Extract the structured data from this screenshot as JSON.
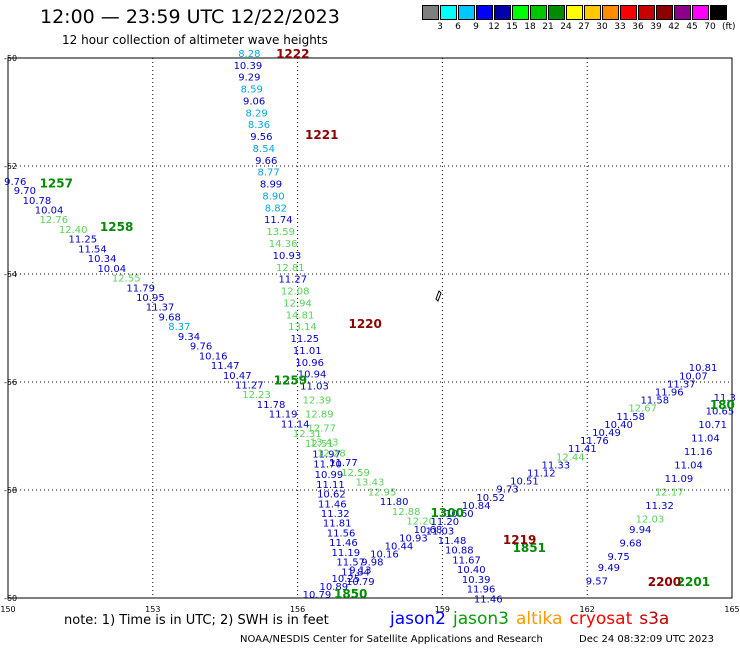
{
  "title": "12:00 — 23:59 UTC 12/22/2023",
  "subtitle": "12 hour collection of altimeter wave heights",
  "legend": {
    "unit": "(ft)",
    "bins": [
      {
        "label": "",
        "color": "#7f7f7f"
      },
      {
        "label": "3",
        "color": "#00ffff"
      },
      {
        "label": "6",
        "color": "#00c8ff"
      },
      {
        "label": "9",
        "color": "#0000ff"
      },
      {
        "label": "12",
        "color": "#0000aa"
      },
      {
        "label": "15",
        "color": "#00ff00"
      },
      {
        "label": "18",
        "color": "#00c800"
      },
      {
        "label": "21",
        "color": "#008c00"
      },
      {
        "label": "24",
        "color": "#ffff00"
      },
      {
        "label": "27",
        "color": "#ffc800"
      },
      {
        "label": "30",
        "color": "#ff8c00"
      },
      {
        "label": "33",
        "color": "#ff0000"
      },
      {
        "label": "36",
        "color": "#c80000"
      },
      {
        "label": "39",
        "color": "#8c0000"
      },
      {
        "label": "42",
        "color": "#8c008c"
      },
      {
        "label": "45",
        "color": "#ff00ff"
      },
      {
        "label": "70",
        "color": "#000000"
      }
    ]
  },
  "axes": {
    "lon_ticks": [
      "150",
      "153",
      "156",
      "159",
      "162",
      "165"
    ],
    "lat_ticks": [
      "-50",
      "-52",
      "-54",
      "-56",
      "-58",
      "-60"
    ]
  },
  "map_region": {
    "lon": [
      150,
      165
    ],
    "lat": [
      -50,
      -60
    ]
  },
  "colors": {
    "blue": "#0000c8",
    "cyan": "#00a8e0",
    "lightgreen": "#5ad25a",
    "green": "#008c00",
    "darkred": "#8c0000"
  },
  "passes": [
    {
      "name": "1222-1220 descending",
      "points": [
        {
          "lon": 155.0,
          "lat": -49.98,
          "v": "8.28",
          "c": "cyan"
        },
        {
          "lon": 154.97,
          "lat": -50.2,
          "v": "10.39",
          "c": "blue"
        },
        {
          "lon": 155.0,
          "lat": -50.42,
          "v": "9.29",
          "c": "blue"
        },
        {
          "lon": 155.05,
          "lat": -50.64,
          "v": "8.59",
          "c": "cyan"
        },
        {
          "lon": 155.1,
          "lat": -50.86,
          "v": "9.06",
          "c": "blue"
        },
        {
          "lon": 155.15,
          "lat": -51.08,
          "v": "8.29",
          "c": "cyan"
        },
        {
          "lon": 155.2,
          "lat": -51.3,
          "v": "8.36",
          "c": "cyan"
        },
        {
          "lon": 155.25,
          "lat": -51.52,
          "v": "9.56",
          "c": "blue"
        },
        {
          "lon": 155.3,
          "lat": -51.74,
          "v": "8.54",
          "c": "cyan"
        },
        {
          "lon": 155.35,
          "lat": -51.96,
          "v": "9.66",
          "c": "blue"
        },
        {
          "lon": 155.4,
          "lat": -52.18,
          "v": "8.77",
          "c": "cyan"
        },
        {
          "lon": 155.45,
          "lat": -52.4,
          "v": "8.99",
          "c": "blue"
        },
        {
          "lon": 155.5,
          "lat": -52.62,
          "v": "8.90",
          "c": "cyan"
        },
        {
          "lon": 155.55,
          "lat": -52.84,
          "v": "8.82",
          "c": "cyan"
        },
        {
          "lon": 155.6,
          "lat": -53.06,
          "v": "11.74",
          "c": "blue"
        },
        {
          "lon": 155.65,
          "lat": -53.28,
          "v": "13.59",
          "c": "lightgreen"
        },
        {
          "lon": 155.7,
          "lat": -53.5,
          "v": "14.36",
          "c": "lightgreen"
        },
        {
          "lon": 155.78,
          "lat": -53.72,
          "v": "10.93",
          "c": "blue"
        },
        {
          "lon": 155.85,
          "lat": -53.94,
          "v": "12.81",
          "c": "lightgreen"
        },
        {
          "lon": 155.9,
          "lat": -54.16,
          "v": "11.27",
          "c": "blue"
        },
        {
          "lon": 155.95,
          "lat": -54.38,
          "v": "12.08",
          "c": "lightgreen"
        },
        {
          "lon": 156.0,
          "lat": -54.6,
          "v": "12.94",
          "c": "lightgreen"
        },
        {
          "lon": 156.05,
          "lat": -54.82,
          "v": "14.81",
          "c": "lightgreen"
        },
        {
          "lon": 156.1,
          "lat": -55.04,
          "v": "13.14",
          "c": "lightgreen"
        },
        {
          "lon": 156.15,
          "lat": -55.26,
          "v": "11.25",
          "c": "blue"
        },
        {
          "lon": 156.2,
          "lat": -55.48,
          "v": "11.01",
          "c": "blue"
        },
        {
          "lon": 156.25,
          "lat": -55.7,
          "v": "10.96",
          "c": "blue"
        },
        {
          "lon": 156.3,
          "lat": -55.92,
          "v": "10.94",
          "c": "blue"
        },
        {
          "lon": 156.35,
          "lat": -56.14,
          "v": "11.03",
          "c": "blue"
        },
        {
          "lon": 156.4,
          "lat": -56.4,
          "v": "12.39",
          "c": "lightgreen"
        },
        {
          "lon": 156.45,
          "lat": -56.66,
          "v": "12.89",
          "c": "lightgreen"
        },
        {
          "lon": 156.5,
          "lat": -56.92,
          "v": "12.77",
          "c": "lightgreen"
        },
        {
          "lon": 156.55,
          "lat": -57.18,
          "v": "13.43",
          "c": "lightgreen"
        },
        {
          "lon": 156.6,
          "lat": -57.4,
          "v": "11.97",
          "c": "blue"
        },
        {
          "lon": 156.62,
          "lat": -57.58,
          "v": "11.70",
          "c": "blue"
        },
        {
          "lon": 156.65,
          "lat": -57.78,
          "v": "10.99",
          "c": "blue"
        },
        {
          "lon": 156.68,
          "lat": -57.96,
          "v": "11.11",
          "c": "blue"
        },
        {
          "lon": 156.7,
          "lat": -58.14,
          "v": "10.62",
          "c": "blue"
        },
        {
          "lon": 156.72,
          "lat": -58.32,
          "v": "11.46",
          "c": "blue"
        },
        {
          "lon": 156.78,
          "lat": -58.5,
          "v": "11.32",
          "c": "blue"
        },
        {
          "lon": 156.82,
          "lat": -58.68,
          "v": "11.81",
          "c": "blue"
        },
        {
          "lon": 156.9,
          "lat": -58.86,
          "v": "11.56",
          "c": "blue"
        },
        {
          "lon": 156.95,
          "lat": -59.04,
          "v": "11.46",
          "c": "blue"
        },
        {
          "lon": 157.0,
          "lat": -59.22,
          "v": "11.19",
          "c": "blue"
        },
        {
          "lon": 157.1,
          "lat": -59.4,
          "v": "11.57",
          "c": "blue"
        },
        {
          "lon": 157.2,
          "lat": -59.58,
          "v": "11.84",
          "c": "blue"
        },
        {
          "lon": 157.3,
          "lat": -59.76,
          "v": "10.79",
          "c": "blue"
        }
      ]
    },
    {
      "name": "1257-1300 descending",
      "points": [
        {
          "lon": 150.15,
          "lat": -52.35,
          "v": "9.76",
          "c": "blue"
        },
        {
          "lon": 150.35,
          "lat": -52.52,
          "v": "9.70",
          "c": "blue"
        },
        {
          "lon": 150.6,
          "lat": -52.7,
          "v": "10.78",
          "c": "blue"
        },
        {
          "lon": 150.85,
          "lat": -52.88,
          "v": "10.04",
          "c": "blue"
        },
        {
          "lon": 150.95,
          "lat": -53.06,
          "v": "12.76",
          "c": "lightgreen"
        },
        {
          "lon": 151.35,
          "lat": -53.24,
          "v": "12.40",
          "c": "lightgreen"
        },
        {
          "lon": 151.55,
          "lat": -53.42,
          "v": "11.25",
          "c": "blue"
        },
        {
          "lon": 151.75,
          "lat": -53.6,
          "v": "11.54",
          "c": "blue"
        },
        {
          "lon": 151.95,
          "lat": -53.78,
          "v": "10.34",
          "c": "blue"
        },
        {
          "lon": 152.15,
          "lat": -53.96,
          "v": "10.04",
          "c": "blue"
        },
        {
          "lon": 152.45,
          "lat": -54.14,
          "v": "12.55",
          "c": "lightgreen"
        },
        {
          "lon": 152.75,
          "lat": -54.32,
          "v": "11.79",
          "c": "blue"
        },
        {
          "lon": 152.95,
          "lat": -54.5,
          "v": "10.95",
          "c": "blue"
        },
        {
          "lon": 153.15,
          "lat": -54.68,
          "v": "11.37",
          "c": "blue"
        },
        {
          "lon": 153.35,
          "lat": -54.86,
          "v": "9.68",
          "c": "blue"
        },
        {
          "lon": 153.55,
          "lat": -55.04,
          "v": "8.37",
          "c": "cyan"
        },
        {
          "lon": 153.75,
          "lat": -55.22,
          "v": "9.34",
          "c": "blue"
        },
        {
          "lon": 154.0,
          "lat": -55.4,
          "v": "9.76",
          "c": "blue"
        },
        {
          "lon": 154.25,
          "lat": -55.58,
          "v": "10.16",
          "c": "blue"
        },
        {
          "lon": 154.5,
          "lat": -55.76,
          "v": "11.47",
          "c": "blue"
        },
        {
          "lon": 154.75,
          "lat": -55.94,
          "v": "10.47",
          "c": "blue"
        },
        {
          "lon": 155.0,
          "lat": -56.12,
          "v": "11.27",
          "c": "blue"
        },
        {
          "lon": 155.15,
          "lat": -56.3,
          "v": "12.23",
          "c": "lightgreen"
        },
        {
          "lon": 155.45,
          "lat": -56.48,
          "v": "11.78",
          "c": "blue"
        },
        {
          "lon": 155.7,
          "lat": -56.66,
          "v": "11.19",
          "c": "blue"
        },
        {
          "lon": 155.95,
          "lat": -56.84,
          "v": "11.14",
          "c": "blue"
        },
        {
          "lon": 156.2,
          "lat": -57.02,
          "v": "12.31",
          "c": "lightgreen"
        },
        {
          "lon": 156.45,
          "lat": -57.2,
          "v": "12.51",
          "c": "lightgreen"
        },
        {
          "lon": 156.7,
          "lat": -57.38,
          "v": "12.28",
          "c": "lightgreen"
        },
        {
          "lon": 156.95,
          "lat": -57.56,
          "v": "11.77",
          "c": "blue"
        },
        {
          "lon": 157.2,
          "lat": -57.74,
          "v": "12.59",
          "c": "lightgreen"
        },
        {
          "lon": 157.5,
          "lat": -57.92,
          "v": "13.43",
          "c": "lightgreen"
        },
        {
          "lon": 157.75,
          "lat": -58.1,
          "v": "12.95",
          "c": "lightgreen"
        },
        {
          "lon": 158.0,
          "lat": -58.28,
          "v": "11.80",
          "c": "blue"
        },
        {
          "lon": 158.25,
          "lat": -58.46,
          "v": "12.88",
          "c": "lightgreen"
        },
        {
          "lon": 158.55,
          "lat": -58.64,
          "v": "12.20",
          "c": "lightgreen"
        },
        {
          "lon": 158.95,
          "lat": -58.82,
          "v": "11.03",
          "c": "blue"
        },
        {
          "lon": 159.2,
          "lat": -59.0,
          "v": "11.48",
          "c": "blue"
        },
        {
          "lon": 159.35,
          "lat": -59.18,
          "v": "10.88",
          "c": "blue"
        },
        {
          "lon": 159.5,
          "lat": -59.36,
          "v": "11.67",
          "c": "blue"
        },
        {
          "lon": 159.6,
          "lat": -59.54,
          "v": "10.40",
          "c": "blue"
        },
        {
          "lon": 159.7,
          "lat": -59.72,
          "v": "10.39",
          "c": "blue"
        },
        {
          "lon": 159.8,
          "lat": -59.9,
          "v": "11.96",
          "c": "blue"
        },
        {
          "lon": 159.95,
          "lat": -60.08,
          "v": "11.46",
          "c": "blue"
        }
      ]
    },
    {
      "name": "1850 ascending",
      "points": [
        {
          "lon": 156.4,
          "lat": -60.0,
          "v": "10.79",
          "c": "blue"
        },
        {
          "lon": 156.75,
          "lat": -59.85,
          "v": "10.89",
          "c": "blue"
        },
        {
          "lon": 157.0,
          "lat": -59.7,
          "v": "10.25",
          "c": "blue"
        },
        {
          "lon": 157.3,
          "lat": -59.55,
          "v": "9.13",
          "c": "blue"
        },
        {
          "lon": 157.55,
          "lat": -59.4,
          "v": "9.98",
          "c": "blue"
        },
        {
          "lon": 157.8,
          "lat": -59.25,
          "v": "10.16",
          "c": "blue"
        },
        {
          "lon": 158.1,
          "lat": -59.1,
          "v": "10.44",
          "c": "blue"
        },
        {
          "lon": 158.4,
          "lat": -58.95,
          "v": "10.93",
          "c": "blue"
        },
        {
          "lon": 158.7,
          "lat": -58.8,
          "v": "10.68",
          "c": "blue"
        },
        {
          "lon": 159.05,
          "lat": -58.65,
          "v": "11.20",
          "c": "blue"
        },
        {
          "lon": 159.35,
          "lat": -58.5,
          "v": "10.60",
          "c": "blue"
        },
        {
          "lon": 159.7,
          "lat": -58.35,
          "v": "10.84",
          "c": "blue"
        },
        {
          "lon": 160.0,
          "lat": -58.2,
          "v": "10.52",
          "c": "blue"
        },
        {
          "lon": 160.35,
          "lat": -58.05,
          "v": "9.73",
          "c": "blue"
        },
        {
          "lon": 160.7,
          "lat": -57.9,
          "v": "10.51",
          "c": "blue"
        },
        {
          "lon": 161.05,
          "lat": -57.75,
          "v": "11.12",
          "c": "blue"
        },
        {
          "lon": 161.35,
          "lat": -57.6,
          "v": "11.33",
          "c": "blue"
        },
        {
          "lon": 161.65,
          "lat": -57.45,
          "v": "12.44",
          "c": "lightgreen"
        },
        {
          "lon": 161.9,
          "lat": -57.3,
          "v": "11.41",
          "c": "blue"
        },
        {
          "lon": 162.15,
          "lat": -57.15,
          "v": "11.76",
          "c": "blue"
        },
        {
          "lon": 162.4,
          "lat": -57.0,
          "v": "10.49",
          "c": "blue"
        },
        {
          "lon": 162.65,
          "lat": -56.85,
          "v": "10.40",
          "c": "blue"
        },
        {
          "lon": 162.9,
          "lat": -56.7,
          "v": "11.58",
          "c": "blue"
        },
        {
          "lon": 163.15,
          "lat": -56.55,
          "v": "12.67",
          "c": "lightgreen"
        },
        {
          "lon": 163.4,
          "lat": -56.4,
          "v": "11.58",
          "c": "blue"
        },
        {
          "lon": 163.7,
          "lat": -56.25,
          "v": "11.96",
          "c": "blue"
        },
        {
          "lon": 163.95,
          "lat": -56.1,
          "v": "11.37",
          "c": "blue"
        },
        {
          "lon": 164.2,
          "lat": -55.95,
          "v": "10.07",
          "c": "blue"
        },
        {
          "lon": 164.4,
          "lat": -55.8,
          "v": "10.81",
          "c": "blue"
        }
      ]
    },
    {
      "name": "2201 ascending",
      "points": [
        {
          "lon": 162.2,
          "lat": -59.75,
          "v": "9.57",
          "c": "blue"
        },
        {
          "lon": 162.45,
          "lat": -59.5,
          "v": "9.49",
          "c": "blue"
        },
        {
          "lon": 162.65,
          "lat": -59.3,
          "v": "9.75",
          "c": "blue"
        },
        {
          "lon": 162.9,
          "lat": -59.05,
          "v": "9.68",
          "c": "blue"
        },
        {
          "lon": 163.1,
          "lat": -58.8,
          "v": "9.94",
          "c": "blue"
        },
        {
          "lon": 163.3,
          "lat": -58.6,
          "v": "12.03",
          "c": "lightgreen"
        },
        {
          "lon": 163.5,
          "lat": -58.35,
          "v": "11.32",
          "c": "blue"
        },
        {
          "lon": 163.7,
          "lat": -58.1,
          "v": "12.17",
          "c": "lightgreen"
        },
        {
          "lon": 163.9,
          "lat": -57.85,
          "v": "11.09",
          "c": "blue"
        },
        {
          "lon": 164.1,
          "lat": -57.6,
          "v": "11.04",
          "c": "blue"
        },
        {
          "lon": 164.3,
          "lat": -57.35,
          "v": "11.16",
          "c": "blue"
        },
        {
          "lon": 164.45,
          "lat": -57.1,
          "v": "11.04",
          "c": "blue"
        },
        {
          "lon": 164.6,
          "lat": -56.85,
          "v": "10.71",
          "c": "blue"
        },
        {
          "lon": 164.75,
          "lat": -56.6,
          "v": "10.65",
          "c": "blue"
        },
        {
          "lon": 164.85,
          "lat": -56.35,
          "v": "11.3",
          "c": "blue"
        }
      ]
    }
  ],
  "time_labels": [
    {
      "lon": 155.9,
      "lat": -50.0,
      "text": "1222",
      "c": "darkred"
    },
    {
      "lon": 156.5,
      "lat": -51.5,
      "text": "1221",
      "c": "darkred"
    },
    {
      "lon": 157.4,
      "lat": -55.0,
      "text": "1220",
      "c": "darkred"
    },
    {
      "lon": 151.0,
      "lat": -52.4,
      "text": "1257",
      "c": "green"
    },
    {
      "lon": 152.25,
      "lat": -53.2,
      "text": "1258",
      "c": "green"
    },
    {
      "lon": 155.85,
      "lat": -56.05,
      "text": "1259",
      "c": "green"
    },
    {
      "lon": 159.1,
      "lat": -58.5,
      "text": "1300",
      "c": "green"
    },
    {
      "lon": 160.8,
      "lat": -59.15,
      "text": "1851",
      "c": "green"
    },
    {
      "lon": 160.6,
      "lat": -59.0,
      "text": "1219",
      "c": "darkred"
    },
    {
      "lon": 157.1,
      "lat": -60.0,
      "text": "1850",
      "c": "green"
    },
    {
      "lon": 164.2,
      "lat": -59.78,
      "text": "2201",
      "c": "green"
    },
    {
      "lon": 163.6,
      "lat": -59.78,
      "text": "2200",
      "c": "darkred"
    },
    {
      "lon": 164.8,
      "lat": -56.5,
      "text": "180",
      "c": "green"
    }
  ],
  "note": "note:  1) Time is in UTC;  2) SWH is in feet",
  "satellites": [
    {
      "name": "jason2",
      "color": "#0000ff"
    },
    {
      "name": "jason3",
      "color": "#00a000"
    },
    {
      "name": "altika",
      "color": "#ff9900"
    },
    {
      "name": "cryosat",
      "color": "#ff0000"
    },
    {
      "name": "s3a",
      "color": "#c00000"
    }
  ],
  "footer": "NOAA/NESDIS Center for Satellite Applications and Research",
  "timestamp": "Dec 24 08:32:09 UTC 2023"
}
